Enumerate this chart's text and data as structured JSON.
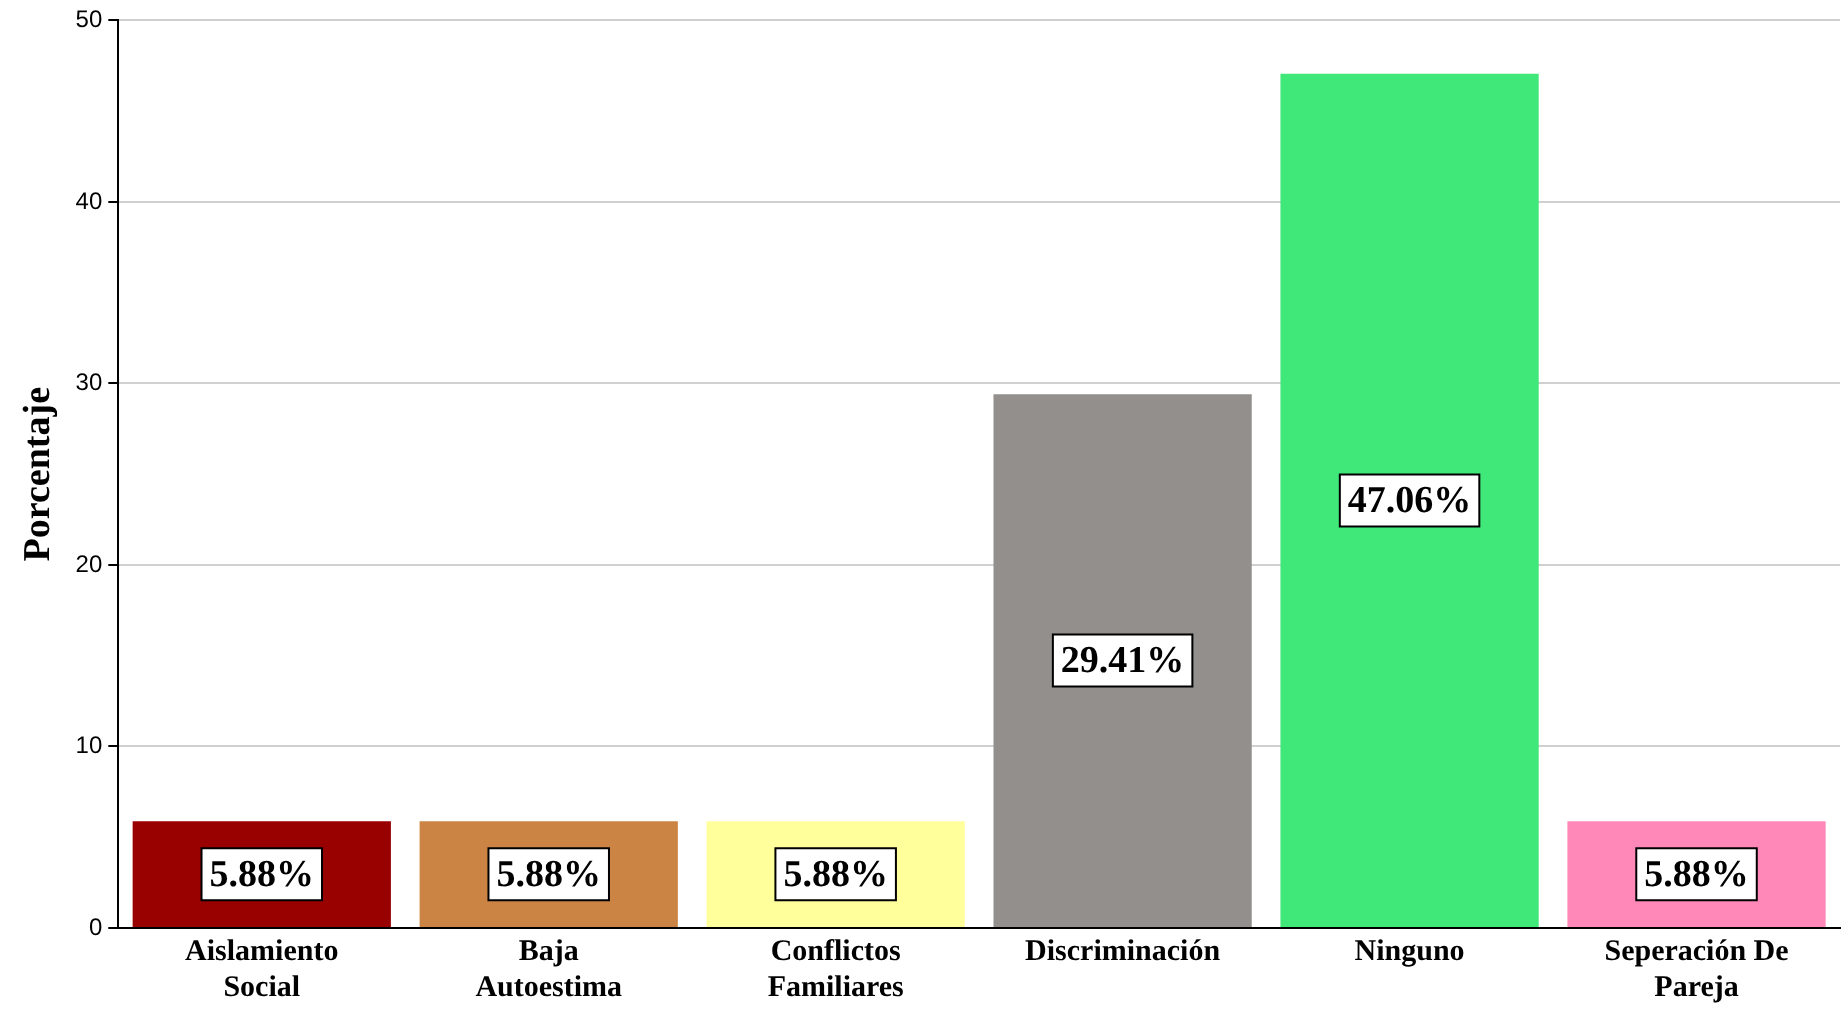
{
  "chart_data": {
    "type": "bar",
    "ylabel": "Porcentaje",
    "categories": [
      "Aislamiento Social",
      "Baja Autoestima",
      "Conflictos Familiares",
      "Discriminación",
      "Ninguno",
      "Seperación De Pareja"
    ],
    "values": [
      5.88,
      5.88,
      5.88,
      29.41,
      47.06,
      5.88
    ],
    "value_labels": [
      "5.88%",
      "5.88%",
      "5.88%",
      "29.41%",
      "47.06%",
      "5.88%"
    ],
    "colors": [
      "#990000",
      "#cc8444",
      "#ffff9c",
      "#928f8c",
      "#40e87a",
      "#ff88b8"
    ],
    "ylim": [
      0,
      50
    ],
    "yticks": [
      0,
      10,
      20,
      30,
      40,
      50
    ],
    "grid": "y",
    "legend": false
  }
}
